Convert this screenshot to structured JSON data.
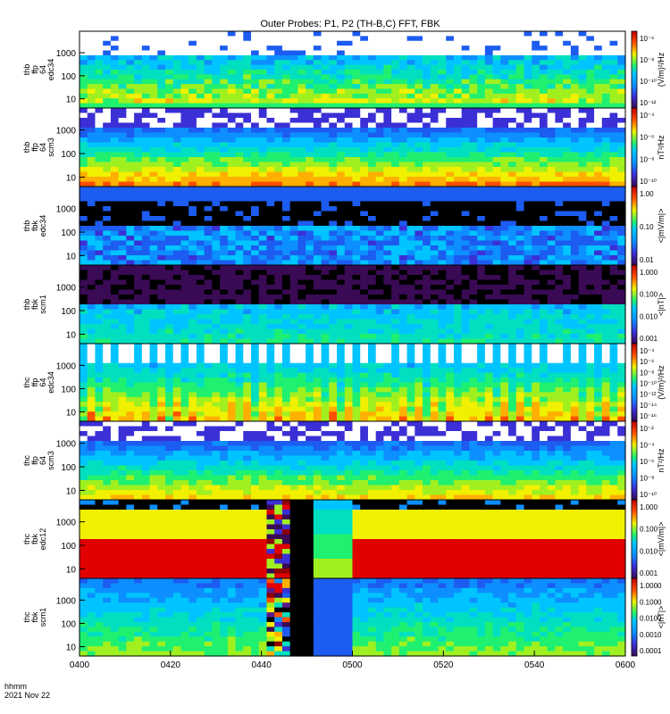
{
  "title": "Outer Probes: P1, P2 (TH-B,C) FFT, FBK",
  "footer": {
    "label1": "hhmm",
    "label2": "2021 Nov 22"
  },
  "colormap": [
    "#000000",
    "#3a0a55",
    "#5b1c8c",
    "#3b2fd6",
    "#1d5cf0",
    "#0d8fff",
    "#00c4ff",
    "#00e0c0",
    "#20f070",
    "#a0f020",
    "#f0f000",
    "#ffb000",
    "#ff5000",
    "#e00000",
    "#900000"
  ],
  "chart_data": {
    "type": "heatmap",
    "title": "Outer Probes: P1, P2 (TH-B,C) FFT, FBK",
    "x_ticks": [
      "0400",
      "0420",
      "0440",
      "0500",
      "0520",
      "0540",
      "0600"
    ],
    "panels": [
      {
        "ylabel": [
          "thb",
          "ffp",
          "64",
          "edc34"
        ],
        "yticks": [
          "1000",
          "100",
          "10"
        ],
        "cblabel": "(V/m)²/Hz",
        "cbticks": [
          "10⁻⁶",
          "10⁻⁸",
          "10⁻¹⁰",
          "10⁻¹²"
        ]
      },
      {
        "ylabel": [
          "thb",
          "ffp",
          "64",
          "scm3"
        ],
        "yticks": [
          "1000",
          "100",
          "10"
        ],
        "cblabel": "nT²/Hz",
        "cbticks": [
          "10⁻⁴",
          "10⁻⁶",
          "10⁻⁸",
          "10⁻¹⁰"
        ]
      },
      {
        "ylabel": [
          "thb",
          "fbk",
          "edc34"
        ],
        "yticks": [
          "1000",
          "100",
          "10"
        ],
        "cblabel": "<|mV/m|>",
        "cbticks": [
          "1.00",
          "0.10",
          "0.01"
        ]
      },
      {
        "ylabel": [
          "thb",
          "fbk",
          "scm1"
        ],
        "yticks": [
          "1000",
          "100",
          "10"
        ],
        "cblabel": "<|nT|>",
        "cbticks": [
          "1.000",
          "0.100",
          "0.010",
          "0.001"
        ]
      },
      {
        "ylabel": [
          "thc",
          "ffp",
          "64",
          "edc34"
        ],
        "yticks": [
          "1000",
          "100",
          "10"
        ],
        "cblabel": "(V/m)²/Hz",
        "cbticks": [
          "10⁻⁴",
          "10⁻⁶",
          "10⁻⁸",
          "10⁻¹⁰",
          "10⁻¹²",
          "10⁻¹⁴",
          "10⁻¹⁶"
        ]
      },
      {
        "ylabel": [
          "thc",
          "ffp",
          "64",
          "scm3"
        ],
        "yticks": [
          "1000",
          "100",
          "10"
        ],
        "cblabel": "nT²/Hz",
        "cbticks": [
          "10⁻²",
          "10⁻⁴",
          "10⁻⁶",
          "10⁻⁸",
          "10⁻¹⁰"
        ]
      },
      {
        "ylabel": [
          "thc",
          "fbk",
          "edc12"
        ],
        "yticks": [
          "1000",
          "100",
          "10"
        ],
        "cblabel": "<|mV/m|>",
        "cbticks": [
          "1.000",
          "0.100",
          "0.010",
          "0.001"
        ]
      },
      {
        "ylabel": [
          "thc",
          "fbk",
          "scm1"
        ],
        "yticks": [
          "1000",
          "100",
          "10"
        ],
        "cblabel": "<|nT|>",
        "cbticks": [
          "1.0000",
          "0.1000",
          "0.0100",
          "0.0010",
          "0.0001"
        ]
      }
    ]
  }
}
